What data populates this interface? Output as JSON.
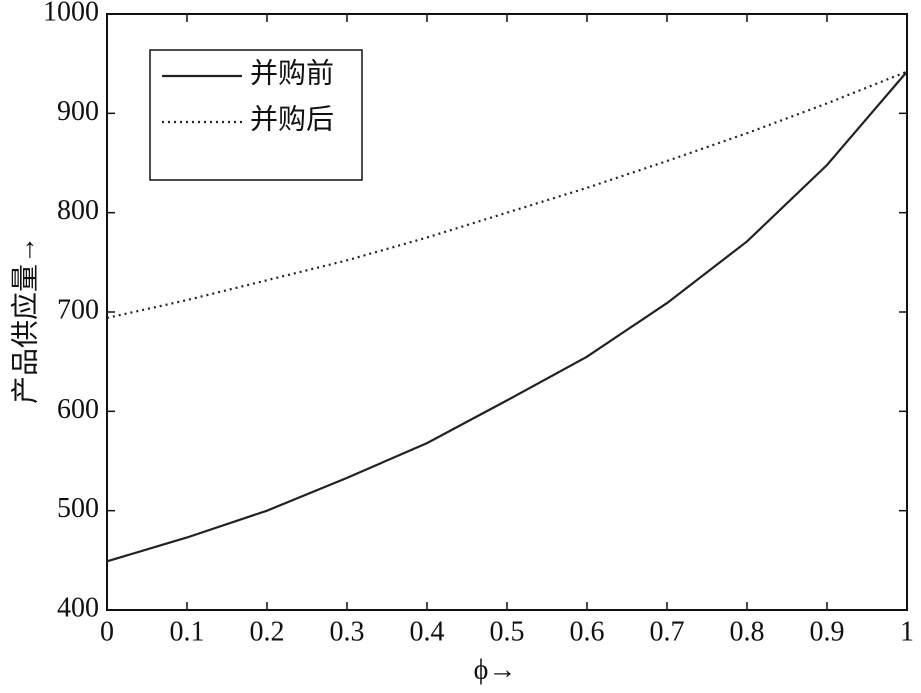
{
  "chart_data": {
    "type": "line",
    "x_label": "ϕ→",
    "y_label": "产品供应量→",
    "x": [
      0,
      0.1,
      0.2,
      0.3,
      0.4,
      0.5,
      0.6,
      0.7,
      0.8,
      0.9,
      1
    ],
    "series": [
      {
        "name": "并购前",
        "color": "#222222",
        "style": "solid",
        "values": [
          449,
          473,
          500,
          533,
          568,
          611,
          655,
          709,
          771,
          848,
          942
        ]
      },
      {
        "name": "并购后",
        "color": "#222222",
        "style": "dotted",
        "values": [
          694,
          712,
          732,
          752,
          775,
          800,
          825,
          852,
          880,
          910,
          942
        ]
      }
    ],
    "xlim": [
      0,
      1
    ],
    "ylim": [
      400,
      1000
    ],
    "xticks": [
      0,
      0.1,
      0.2,
      0.3,
      0.4,
      0.5,
      0.6,
      0.7,
      0.8,
      0.9,
      1
    ],
    "yticks": [
      400,
      500,
      600,
      700,
      800,
      900,
      1000
    ],
    "legend": "upper left"
  }
}
